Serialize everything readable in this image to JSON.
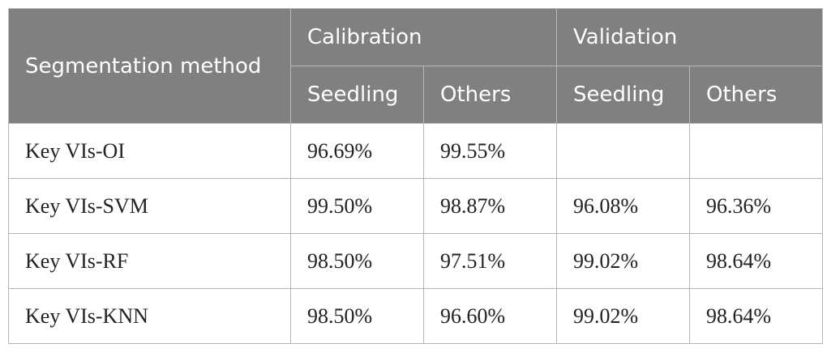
{
  "table": {
    "header": {
      "method": "Segmentation method",
      "groups": [
        "Calibration",
        "Validation"
      ],
      "subheaders": [
        "Seedling",
        "Others",
        "Seedling",
        "Others"
      ]
    },
    "rows": [
      {
        "method": "Key VIs-OI",
        "values": [
          "96.69%",
          "99.55%",
          "",
          ""
        ]
      },
      {
        "method": "Key VIs-SVM",
        "values": [
          "99.50%",
          "98.87%",
          "96.08%",
          "96.36%"
        ]
      },
      {
        "method": "Key VIs-RF",
        "values": [
          "98.50%",
          "97.51%",
          "99.02%",
          "98.64%"
        ]
      },
      {
        "method": "Key VIs-KNN",
        "values": [
          "98.50%",
          "96.60%",
          "99.02%",
          "98.64%"
        ]
      }
    ]
  }
}
